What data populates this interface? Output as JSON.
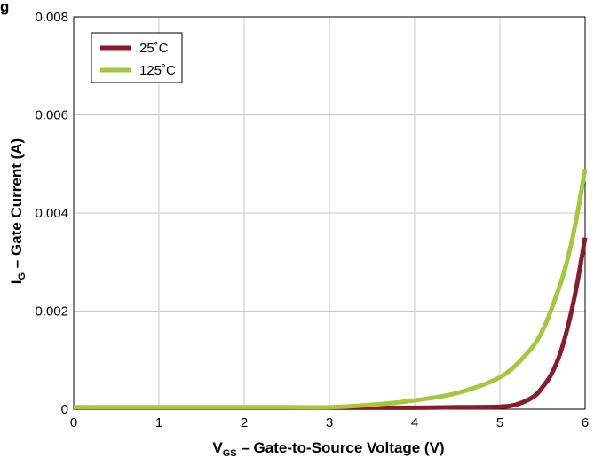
{
  "chart_data": {
    "type": "line",
    "title_fragment": "g",
    "xlabel": {
      "main": "V",
      "sub": "GS",
      "rest": " – Gate-to-Source Voltage (V)"
    },
    "ylabel": {
      "main": "I",
      "sub": "G",
      "rest": " – Gate Current (A)"
    },
    "xlim": [
      0,
      6
    ],
    "ylim": [
      0,
      0.008
    ],
    "x_ticks": [
      0,
      1,
      2,
      3,
      4,
      5,
      6
    ],
    "x_tick_labels": [
      "0",
      "1",
      "2",
      "3",
      "4",
      "5",
      "6"
    ],
    "y_ticks": [
      0,
      0.002,
      0.004,
      0.006,
      0.008
    ],
    "y_tick_labels": [
      "0",
      "0.002",
      "0.004",
      "0.006",
      "0.008"
    ],
    "grid": true,
    "legend_position": "top-left",
    "series": [
      {
        "name": "25˚C",
        "color": "#8b1a2b",
        "x": [
          0,
          1,
          2,
          3,
          4,
          4.5,
          5.0,
          5.2,
          5.4,
          5.5,
          5.6,
          5.7,
          5.8,
          5.9,
          6.0
        ],
        "y": [
          3e-05,
          3e-05,
          3e-05,
          3e-05,
          3e-05,
          4e-05,
          5e-05,
          0.0001,
          0.00026,
          0.00045,
          0.0007,
          0.0011,
          0.0017,
          0.0025,
          0.0035
        ]
      },
      {
        "name": "125˚C",
        "color": "#a3c93a",
        "x": [
          0,
          1,
          2,
          2.5,
          3.0,
          3.5,
          4.0,
          4.5,
          5.0,
          5.3,
          5.5,
          5.7,
          5.8,
          5.9,
          6.0
        ],
        "y": [
          4e-05,
          4e-05,
          4e-05,
          4e-05,
          4e-05,
          9e-05,
          0.00018,
          0.00033,
          0.00065,
          0.0011,
          0.0016,
          0.0025,
          0.0031,
          0.0039,
          0.0049
        ]
      }
    ]
  }
}
